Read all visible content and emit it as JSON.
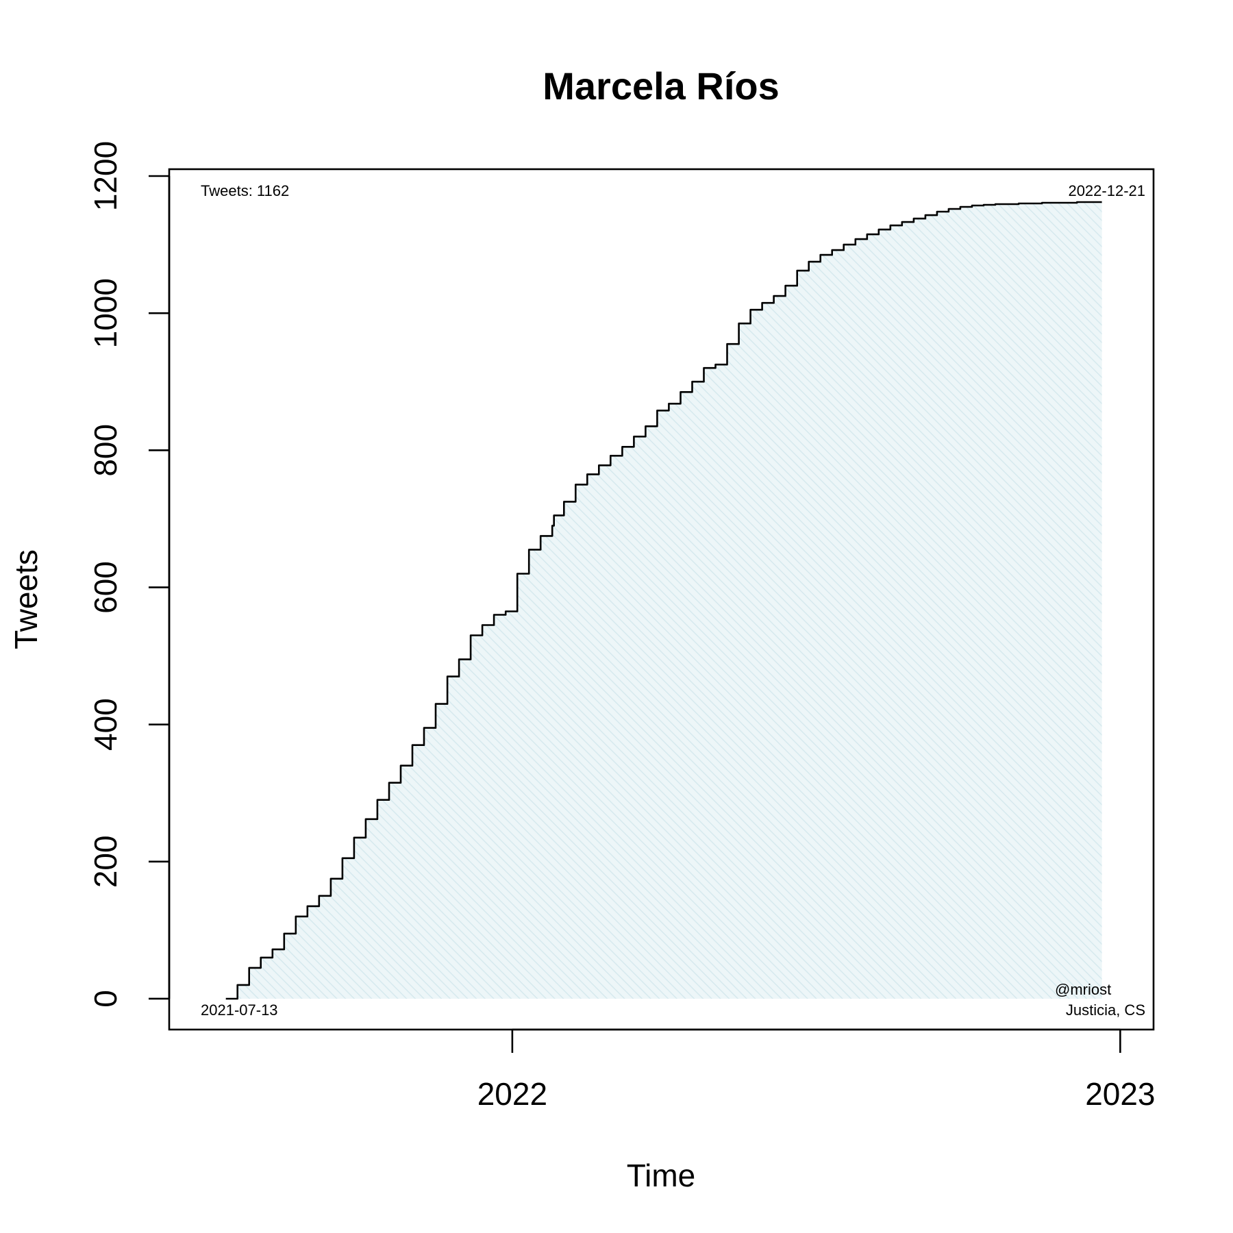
{
  "chart_data": {
    "type": "area",
    "title": "Marcela Ríos",
    "xlabel": "Time",
    "ylabel": "Tweets",
    "x_ticks": [
      "2022",
      "2023"
    ],
    "y_ticks": [
      0,
      200,
      400,
      600,
      800,
      1000,
      1200
    ],
    "xlim": [
      "2021-06-09",
      "2023-01-21"
    ],
    "ylim": [
      -45,
      1210
    ],
    "grid": false,
    "fill_color": "#e4f1f4",
    "line_color": "#000000",
    "annotations": {
      "total": "Tweets: 1162",
      "start_date": "2021-07-13",
      "end_date": "2022-12-21",
      "handle": "@mriost",
      "affiliation": "Justicia, CS"
    },
    "series": [
      {
        "x": [
          "2021-07-13",
          "2021-07-20",
          "2021-07-27",
          "2021-08-03",
          "2021-08-10",
          "2021-08-17",
          "2021-08-24",
          "2021-08-31",
          "2021-09-07",
          "2021-09-14",
          "2021-09-21",
          "2021-09-28",
          "2021-10-05",
          "2021-10-12",
          "2021-10-19",
          "2021-10-26",
          "2021-11-02",
          "2021-11-09",
          "2021-11-16",
          "2021-11-23",
          "2021-11-30",
          "2021-12-07",
          "2021-12-14",
          "2021-12-21",
          "2021-12-28",
          "2022-01-04",
          "2022-01-11",
          "2022-01-18",
          "2022-01-25",
          "2022-01-26",
          "2022-02-01",
          "2022-02-08",
          "2022-02-15",
          "2022-02-22",
          "2022-03-01",
          "2022-03-08",
          "2022-03-15",
          "2022-03-22",
          "2022-03-29",
          "2022-04-05",
          "2022-04-12",
          "2022-04-19",
          "2022-04-26",
          "2022-05-03",
          "2022-05-10",
          "2022-05-17",
          "2022-05-24",
          "2022-05-31",
          "2022-06-07",
          "2022-06-14",
          "2022-06-21",
          "2022-06-28",
          "2022-07-05",
          "2022-07-12",
          "2022-07-19",
          "2022-07-26",
          "2022-08-02",
          "2022-08-09",
          "2022-08-16",
          "2022-08-23",
          "2022-08-30",
          "2022-09-06",
          "2022-09-13",
          "2022-09-20",
          "2022-09-27",
          "2022-10-04",
          "2022-10-11",
          "2022-10-18",
          "2022-10-25",
          "2022-11-01",
          "2022-11-08",
          "2022-11-15",
          "2022-11-22",
          "2022-11-29",
          "2022-12-06",
          "2022-12-13",
          "2022-12-21"
        ],
        "y": [
          0,
          20,
          45,
          60,
          72,
          95,
          120,
          135,
          150,
          175,
          205,
          235,
          262,
          290,
          315,
          340,
          370,
          395,
          430,
          470,
          495,
          530,
          545,
          560,
          565,
          620,
          655,
          675,
          690,
          705,
          725,
          750,
          765,
          778,
          792,
          805,
          820,
          835,
          858,
          868,
          885,
          900,
          920,
          925,
          955,
          985,
          1005,
          1015,
          1025,
          1040,
          1062,
          1075,
          1085,
          1092,
          1100,
          1108,
          1115,
          1122,
          1128,
          1133,
          1138,
          1143,
          1148,
          1152,
          1155,
          1157,
          1158,
          1159,
          1159,
          1160,
          1160,
          1161,
          1161,
          1161,
          1162,
          1162,
          1162
        ]
      }
    ]
  }
}
